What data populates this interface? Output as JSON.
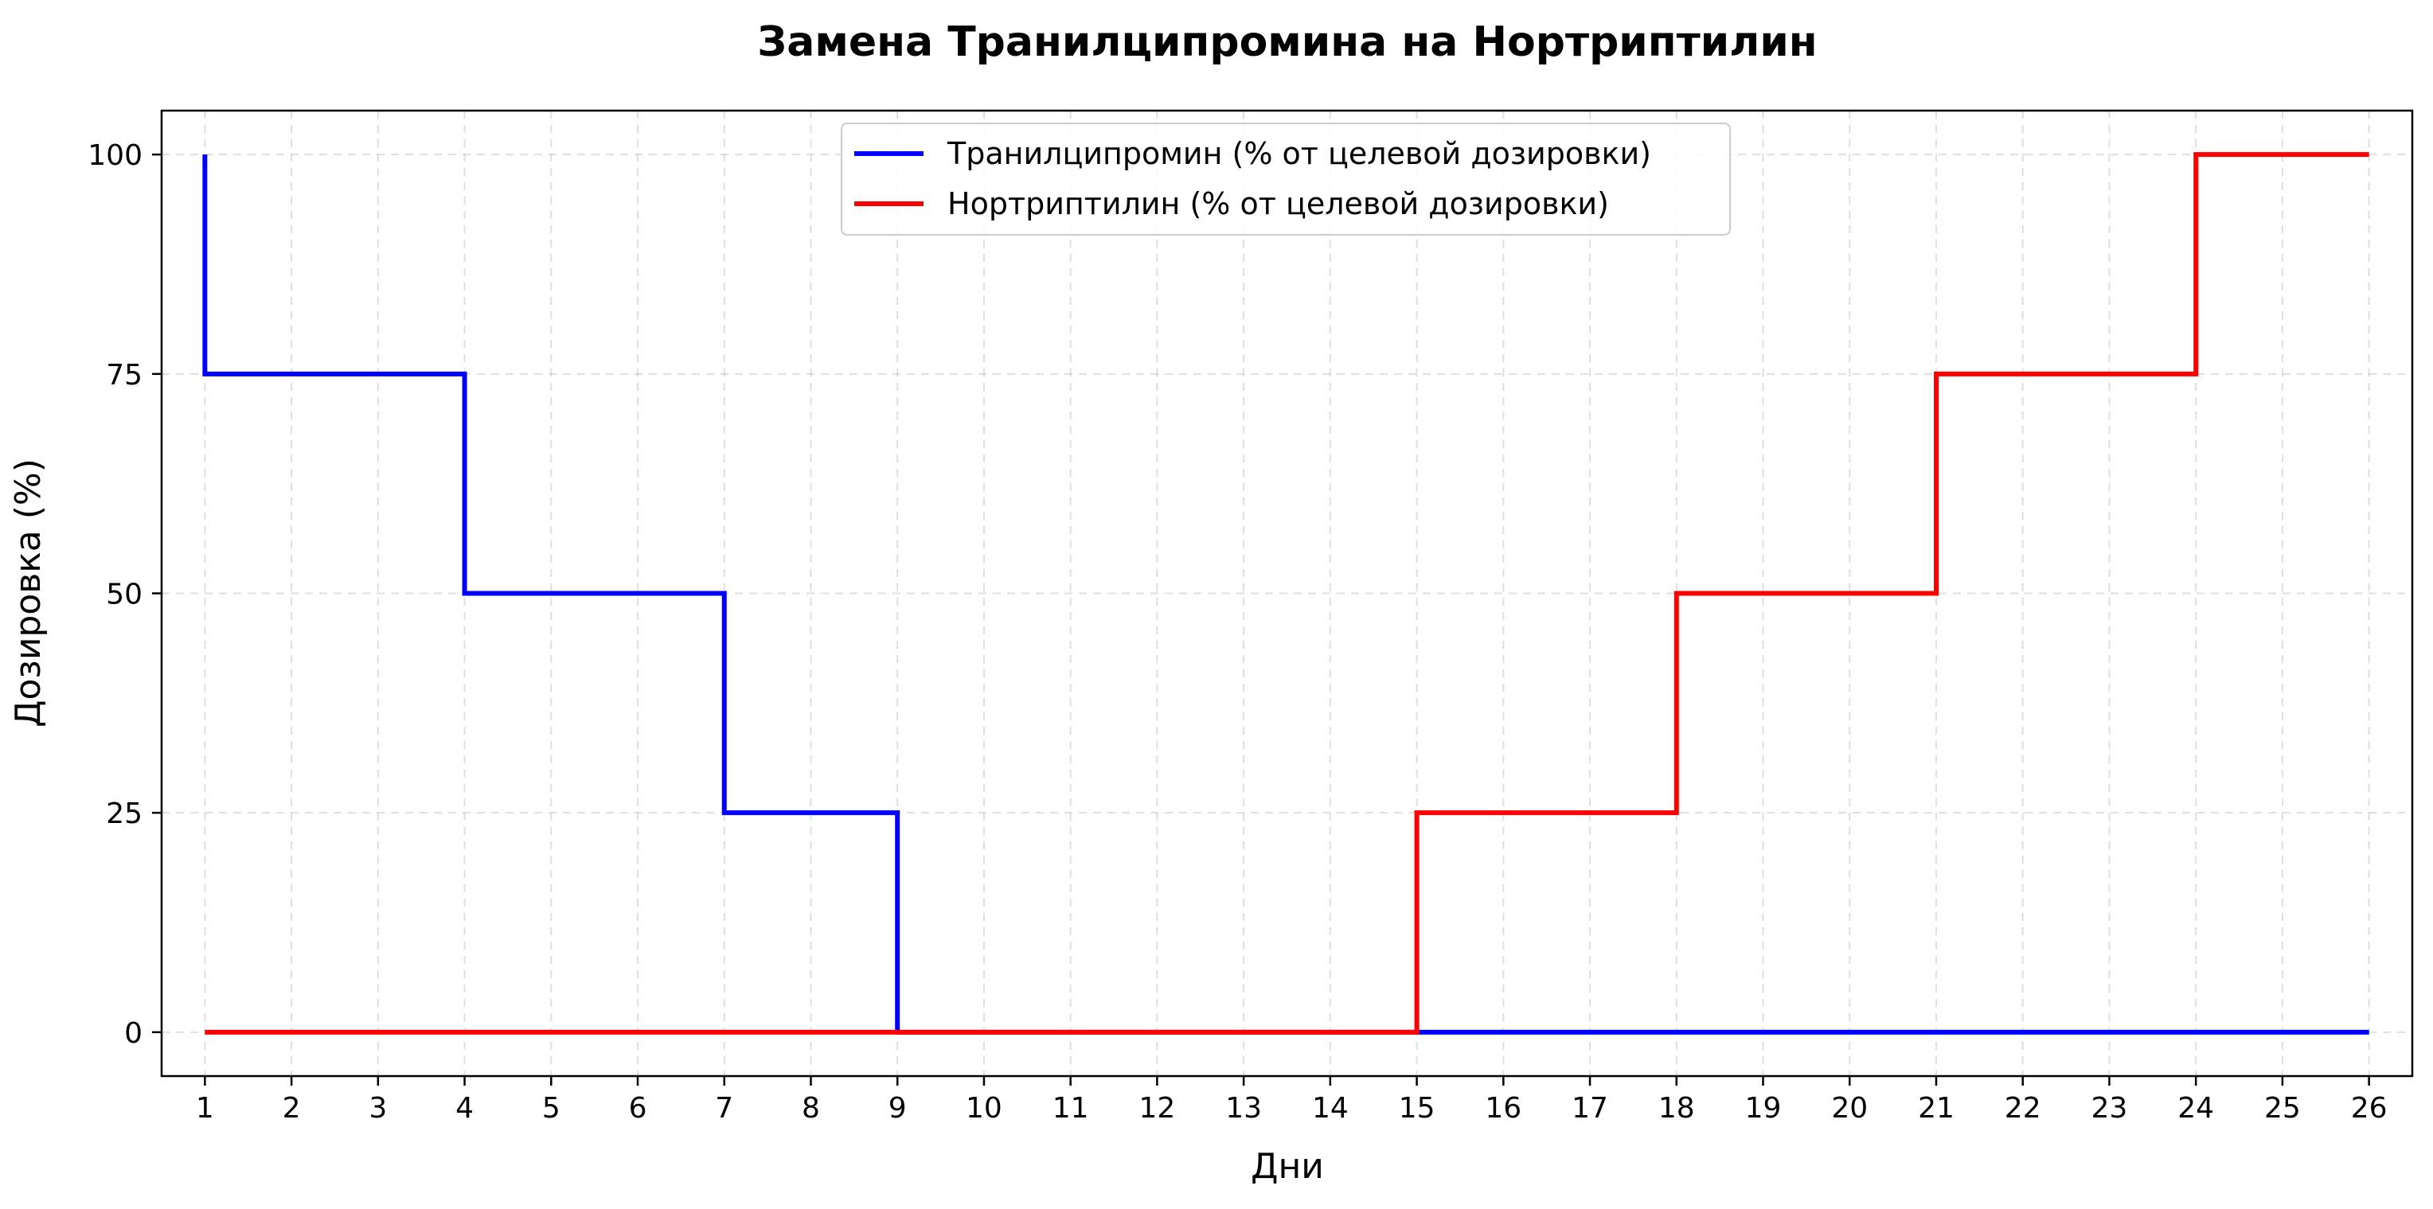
{
  "chart_data": {
    "type": "line",
    "step": "post",
    "title": "Замена Транилципромина на Нортриптилин",
    "xlabel": "Дни",
    "ylabel": "Дозировка (%)",
    "xlim": [
      0.5,
      26.5
    ],
    "ylim": [
      -5,
      105
    ],
    "x_ticks": [
      1,
      2,
      3,
      4,
      5,
      6,
      7,
      8,
      9,
      10,
      11,
      12,
      13,
      14,
      15,
      16,
      17,
      18,
      19,
      20,
      21,
      22,
      23,
      24,
      25,
      26
    ],
    "y_ticks": [
      0,
      25,
      50,
      75,
      100
    ],
    "grid": true,
    "legend_position": "upper-center",
    "series": [
      {
        "name": "Транилципромин (% от целевой дозировки)",
        "color": "#0000ff",
        "x": [
          1,
          1,
          4,
          7,
          9,
          26
        ],
        "y": [
          100,
          75,
          50,
          25,
          0,
          0
        ]
      },
      {
        "name": "Нортриптилин (% от целевой дозировки)",
        "color": "#ff0000",
        "x": [
          1,
          15,
          18,
          21,
          24,
          26
        ],
        "y": [
          0,
          25,
          50,
          75,
          100,
          100
        ]
      }
    ]
  }
}
